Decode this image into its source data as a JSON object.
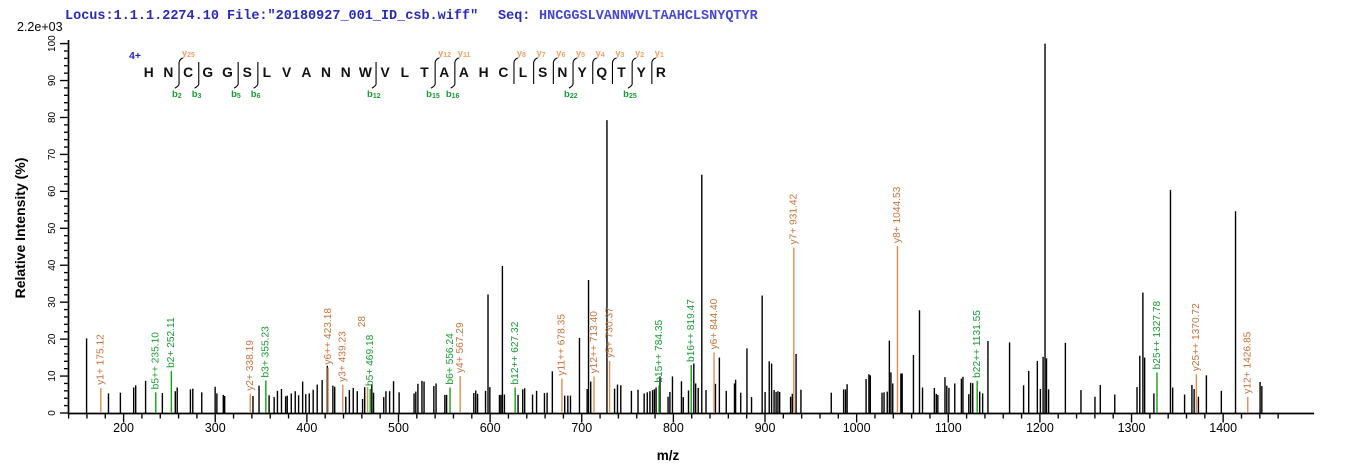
{
  "header": {
    "locus_file": "Locus:1.1.1.2274.10 File:\"20180927_001_ID_csb.wiff\"",
    "seq_label": "Seq:",
    "sequence": "HNCGGSLVANNWVLTAAHCLSNYQTYR"
  },
  "scale_label": "2.2e+03",
  "axes": {
    "x_label": "m/z",
    "y_label": "Relative  Intensity (%)",
    "x_major_ticks": [
      200,
      300,
      400,
      500,
      600,
      700,
      800,
      900,
      1000,
      1100,
      1200,
      1300,
      1400
    ],
    "x_minor_start": 140,
    "x_minor_end": 1460,
    "x_minor_step": 20,
    "x_axis_end_mz": 1499,
    "y_major_ticks": [
      0,
      10,
      20,
      30,
      40,
      50,
      60,
      70,
      80,
      90,
      100
    ],
    "y_minor_step": 2
  },
  "peptide_diagram": {
    "charge_label": "4+",
    "residues": [
      "H",
      "N",
      "C",
      "G",
      "G",
      "S",
      "L",
      "V",
      "A",
      "N",
      "N",
      "W",
      "V",
      "L",
      "T",
      "A",
      "A",
      "H",
      "C",
      "L",
      "S",
      "N",
      "Y",
      "Q",
      "T",
      "Y",
      "R"
    ],
    "cuts": [
      {
        "after": 2,
        "y": "y25",
        "b": "b2"
      },
      {
        "after": 3,
        "b": "b3"
      },
      {
        "after": 5,
        "b": "b5"
      },
      {
        "after": 6,
        "b": "b6"
      },
      {
        "after": 12,
        "b": "b12"
      },
      {
        "after": 15,
        "y": "y12",
        "b": "b15"
      },
      {
        "after": 16,
        "y": "y11",
        "b": "b16"
      },
      {
        "after": 19,
        "y": "y8"
      },
      {
        "after": 20,
        "y": "y7"
      },
      {
        "after": 21,
        "y": "y6"
      },
      {
        "after": 22,
        "y": "y5",
        "b": "b22"
      },
      {
        "after": 23,
        "y": "y4"
      },
      {
        "after": 24,
        "y": "y3"
      },
      {
        "after": 25,
        "y": "y2",
        "b": "b25"
      },
      {
        "after": 26,
        "y": "y1"
      }
    ]
  },
  "chart_data": {
    "type": "bar",
    "subtype": "ms2-centroid-mass-spectrum",
    "title": "",
    "xlabel": "m/z",
    "ylabel": "Relative  Intensity (%)",
    "xlim": [
      140,
      1500
    ],
    "ylim": [
      0,
      100
    ],
    "intensity_scale_max": "2.2e+03",
    "annotated_peaks": [
      {
        "mz": 175.12,
        "pct": 6.8,
        "ion": "y1+",
        "label": "y1+ 175.12",
        "series": "y"
      },
      {
        "mz": 235.1,
        "pct": 5.6,
        "ion": "b5++",
        "label": "b5++ 235.10",
        "series": "b"
      },
      {
        "mz": 252.11,
        "pct": 11.4,
        "ion": "b2+",
        "label": "b2+ 252.11",
        "series": "b"
      },
      {
        "mz": 338.19,
        "pct": 5.2,
        "ion": "y2+",
        "label": "y2+ 338.19",
        "series": "y"
      },
      {
        "mz": 355.23,
        "pct": 8.8,
        "ion": "b3+",
        "label": "b3+ 355.23",
        "series": "b"
      },
      {
        "mz": 423.18,
        "pct": 12.3,
        "ion": "y6++",
        "label": "y6++ 423.18",
        "series": "y"
      },
      {
        "mz": 439.23,
        "pct": 7.6,
        "ion": "y3+",
        "label": "y3+ 439.23",
        "series": "y"
      },
      {
        "mz": 466.28,
        "pct": 7.0,
        "ion": "y",
        "label": "28",
        "series": "y",
        "label_truncated": true,
        "overlap_above_mz": 469.18
      },
      {
        "mz": 469.18,
        "pct": 6.5,
        "ion": "b5+",
        "label": "b5+ 469.18",
        "series": "b"
      },
      {
        "mz": 556.24,
        "pct": 6.9,
        "ion": "b6+",
        "label": "b6+ 556.24",
        "series": "b"
      },
      {
        "mz": 567.29,
        "pct": 10.0,
        "ion": "y4+",
        "label": "y4+ 567.29",
        "series": "y"
      },
      {
        "mz": 627.32,
        "pct": 6.9,
        "ion": "b12++",
        "label": "b12++ 627.32",
        "series": "b"
      },
      {
        "mz": 678.35,
        "pct": 9.3,
        "ion": "y11++",
        "label": "y11++ 678.35",
        "series": "y"
      },
      {
        "mz": 713.4,
        "pct": 9.9,
        "ion": "y12++",
        "label": "y12++ 713.40",
        "series": "y"
      },
      {
        "mz": 730.37,
        "pct": 14.1,
        "ion": "y5+",
        "label": "y5+ 730.37",
        "series": "y"
      },
      {
        "mz": 784.35,
        "pct": 7.4,
        "ion": "b15++",
        "label": "b15++ 784.35",
        "series": "b"
      },
      {
        "mz": 819.47,
        "pct": 13.0,
        "ion": "b16++",
        "label": "b16++ 819.47",
        "series": "b"
      },
      {
        "mz": 844.4,
        "pct": 16.4,
        "ion": "y6+",
        "label": "y6+ 844.40",
        "series": "y"
      },
      {
        "mz": 931.42,
        "pct": 44.8,
        "ion": "y7+",
        "label": "y7+ 931.42",
        "series": "y"
      },
      {
        "mz": 1044.53,
        "pct": 45.2,
        "ion": "y8+",
        "label": "y8+ 1044.53",
        "series": "y"
      },
      {
        "mz": 1131.55,
        "pct": 8.7,
        "ion": "b22++",
        "label": "b22++ 1131.55",
        "series": "b"
      },
      {
        "mz": 1327.78,
        "pct": 11.0,
        "ion": "b25++",
        "label": "b25++ 1327.78",
        "series": "b"
      },
      {
        "mz": 1370.72,
        "pct": 10.5,
        "ion": "y25++",
        "label": "y25++ 1370.72",
        "series": "y"
      },
      {
        "mz": 1426.85,
        "pct": 4.4,
        "ion": "y12+",
        "label": "y12+ 1426.85",
        "series": "y"
      }
    ],
    "peaks": [
      [
        159.6,
        20.2
      ],
      [
        183.5,
        5.3
      ],
      [
        196.5,
        5.5
      ],
      [
        211.0,
        6.9
      ],
      [
        213.2,
        7.5
      ],
      [
        224.0,
        8.7
      ],
      [
        242.3,
        5.4
      ],
      [
        256.4,
        5.9
      ],
      [
        258.5,
        6.9
      ],
      [
        272.9,
        6.4
      ],
      [
        275.5,
        6.6
      ],
      [
        285.3,
        5.6
      ],
      [
        299.9,
        7.1
      ],
      [
        301.8,
        5.3
      ],
      [
        308.8,
        4.9
      ],
      [
        310.3,
        4.6
      ],
      [
        341.2,
        4.6
      ],
      [
        347.8,
        7.4
      ],
      [
        358.8,
        4.8
      ],
      [
        364.3,
        4.3
      ],
      [
        367.9,
        6.0
      ],
      [
        372.3,
        6.5
      ],
      [
        376.8,
        4.5
      ],
      [
        378.6,
        4.7
      ],
      [
        383.0,
        5.3
      ],
      [
        387.3,
        5.9
      ],
      [
        391.0,
        4.8
      ],
      [
        395.4,
        8.5
      ],
      [
        398.8,
        5.1
      ],
      [
        402.6,
        5.3
      ],
      [
        406.9,
        6.3
      ],
      [
        411.3,
        7.7
      ],
      [
        416.7,
        8.9
      ],
      [
        422.3,
        12.8
      ],
      [
        428.4,
        7.4
      ],
      [
        430.4,
        7.1
      ],
      [
        442.5,
        4.4
      ],
      [
        446.4,
        6.2
      ],
      [
        450.6,
        6.8
      ],
      [
        455.0,
        5.9
      ],
      [
        460.8,
        3.8
      ],
      [
        463.1,
        7.0
      ],
      [
        470.9,
        7.8
      ],
      [
        472.8,
        5.5
      ],
      [
        483.9,
        4.3
      ],
      [
        486.3,
        5.9
      ],
      [
        490.3,
        5.9
      ],
      [
        494.6,
        8.6
      ],
      [
        500.7,
        5.6
      ],
      [
        517.0,
        5.3
      ],
      [
        518.9,
        5.8
      ],
      [
        521.2,
        7.9
      ],
      [
        525.6,
        8.7
      ],
      [
        527.9,
        8.5
      ],
      [
        538.6,
        7.3
      ],
      [
        541.0,
        8.0
      ],
      [
        550.6,
        4.9
      ],
      [
        552.5,
        4.9
      ],
      [
        582.2,
        5.4
      ],
      [
        584.3,
        6.1
      ],
      [
        586.3,
        5.2
      ],
      [
        595.0,
        6.0
      ],
      [
        597.7,
        32.1
      ],
      [
        599.7,
        7.0
      ],
      [
        610.2,
        4.9
      ],
      [
        611.8,
        4.9
      ],
      [
        613.4,
        39.8
      ],
      [
        615.6,
        5.0
      ],
      [
        630.5,
        4.9
      ],
      [
        635.6,
        6.4
      ],
      [
        637.7,
        6.7
      ],
      [
        646.3,
        5.0
      ],
      [
        650.7,
        6.0
      ],
      [
        659.3,
        5.4
      ],
      [
        662.2,
        5.5
      ],
      [
        667.9,
        11.3
      ],
      [
        681.4,
        4.7
      ],
      [
        684.8,
        4.7
      ],
      [
        687.7,
        4.7
      ],
      [
        697.5,
        20.3
      ],
      [
        705.9,
        6.5
      ],
      [
        707.4,
        36.0
      ],
      [
        709.8,
        8.5
      ],
      [
        727.5,
        79.3
      ],
      [
        735.8,
        6.6
      ],
      [
        739.0,
        7.7
      ],
      [
        742.6,
        7.5
      ],
      [
        754.2,
        6.0
      ],
      [
        761.4,
        6.3
      ],
      [
        768.1,
        5.3
      ],
      [
        771.5,
        5.6
      ],
      [
        774.4,
        5.9
      ],
      [
        777.3,
        6.2
      ],
      [
        779.3,
        6.4
      ],
      [
        781.1,
        6.9
      ],
      [
        785.4,
        9.9
      ],
      [
        794.2,
        4.4
      ],
      [
        796.2,
        5.7
      ],
      [
        799.0,
        9.9
      ],
      [
        808.8,
        8.6
      ],
      [
        810.8,
        4.3
      ],
      [
        816.5,
        6.1
      ],
      [
        822.3,
        13.4
      ],
      [
        824.3,
        8.0
      ],
      [
        827.1,
        6.8
      ],
      [
        831.0,
        64.5
      ],
      [
        835.6,
        6.2
      ],
      [
        845.9,
        7.9
      ],
      [
        850.2,
        15.0
      ],
      [
        857.7,
        6.0
      ],
      [
        866.7,
        8.0
      ],
      [
        867.9,
        9.0
      ],
      [
        873.5,
        5.5
      ],
      [
        880.3,
        17.5
      ],
      [
        885.3,
        4.3
      ],
      [
        896.9,
        31.8
      ],
      [
        900.1,
        5.7
      ],
      [
        904.6,
        14.0
      ],
      [
        907.2,
        13.4
      ],
      [
        909.9,
        6.2
      ],
      [
        912.1,
        5.7
      ],
      [
        914.1,
        5.9
      ],
      [
        916.0,
        5.7
      ],
      [
        927.9,
        4.4
      ],
      [
        929.8,
        5.2
      ],
      [
        933.9,
        16.0
      ],
      [
        939.2,
        6.3
      ],
      [
        972.3,
        5.5
      ],
      [
        985.8,
        6.4
      ],
      [
        987.9,
        6.4
      ],
      [
        989.6,
        7.8
      ],
      [
        1010.3,
        9.2
      ],
      [
        1013.4,
        10.5
      ],
      [
        1014.9,
        10.2
      ],
      [
        1027.7,
        5.5
      ],
      [
        1029.9,
        5.6
      ],
      [
        1033.4,
        5.8
      ],
      [
        1035.7,
        19.6
      ],
      [
        1037.4,
        11.0
      ],
      [
        1039.4,
        8.0
      ],
      [
        1048.3,
        10.7
      ],
      [
        1049.7,
        10.7
      ],
      [
        1062.0,
        15.7
      ],
      [
        1068.6,
        27.8
      ],
      [
        1071.9,
        6.9
      ],
      [
        1084.8,
        6.8
      ],
      [
        1086.9,
        5.2
      ],
      [
        1088.6,
        4.9
      ],
      [
        1096.4,
        9.7
      ],
      [
        1098.4,
        7.4
      ],
      [
        1100.7,
        6.8
      ],
      [
        1107.1,
        8.0
      ],
      [
        1114.3,
        9.3
      ],
      [
        1116.0,
        9.8
      ],
      [
        1122.4,
        5.1
      ],
      [
        1124.4,
        8.2
      ],
      [
        1126.7,
        8.1
      ],
      [
        1134.3,
        5.8
      ],
      [
        1137.5,
        5.3
      ],
      [
        1143.3,
        19.5
      ],
      [
        1166.9,
        19.1
      ],
      [
        1182.2,
        7.5
      ],
      [
        1187.8,
        11.4
      ],
      [
        1197.2,
        14.1
      ],
      [
        1200.5,
        6.5
      ],
      [
        1203.5,
        15.2
      ],
      [
        1205.6,
        100.0
      ],
      [
        1207.2,
        14.8
      ],
      [
        1209.5,
        6.4
      ],
      [
        1227.8,
        19.0
      ],
      [
        1244.8,
        6.2
      ],
      [
        1260.1,
        4.4
      ],
      [
        1265.9,
        7.6
      ],
      [
        1281.7,
        5.0
      ],
      [
        1306.0,
        7.0
      ],
      [
        1309.0,
        15.5
      ],
      [
        1312.4,
        32.6
      ],
      [
        1314.3,
        15.0
      ],
      [
        1324.4,
        5.3
      ],
      [
        1342.5,
        60.4
      ],
      [
        1344.9,
        6.9
      ],
      [
        1357.9,
        5.0
      ],
      [
        1365.9,
        7.6
      ],
      [
        1368.3,
        6.5
      ],
      [
        1373.0,
        4.4
      ],
      [
        1381.7,
        10.2
      ],
      [
        1398.0,
        6.0
      ],
      [
        1413.5,
        54.6
      ],
      [
        1440.3,
        8.4
      ],
      [
        1442.2,
        7.3
      ]
    ],
    "legend": null,
    "grid": false
  },
  "colors": {
    "background": "#ffffff",
    "axis": "#000000",
    "peak_black": "#000000",
    "y_ion_line": "#dd8f55",
    "y_ion_text": "#c7743d",
    "y_ion_diagram": "#f0a068",
    "b_ion_line": "#14a014",
    "b_ion_text": "#1a9b35",
    "header_blue": "#2a2ab8",
    "sequence_blue": "#4646d8",
    "charge_blue": "#2323cc",
    "residue_black": "#111111"
  }
}
